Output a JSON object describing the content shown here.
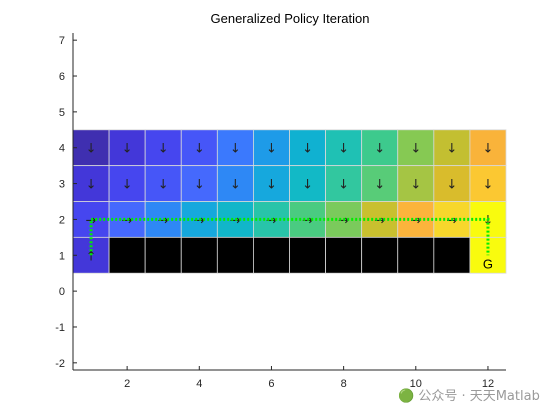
{
  "chart_data": {
    "type": "heatmap",
    "title": "Generalized Policy Iteration",
    "xlabel": "",
    "ylabel": "",
    "xlim": [
      0.5,
      12.5
    ],
    "ylim": [
      -2.2,
      7.2
    ],
    "xticks": [
      2,
      4,
      6,
      8,
      10,
      12
    ],
    "yticks": [
      -2,
      -1,
      0,
      1,
      2,
      3,
      4,
      5,
      6,
      7
    ],
    "grid": false,
    "goal": {
      "label": "G",
      "x": 12,
      "y": 1
    },
    "cliff": {
      "row": 1,
      "x_from": 2,
      "x_to": 11,
      "color": "#000000"
    },
    "rows": [
      {
        "y": 4,
        "colors": [
          "#3f2fb0",
          "#4337d9",
          "#4646ef",
          "#4656f8",
          "#3b79fd",
          "#1e9be8",
          "#10b1d1",
          "#1fc1b4",
          "#3dca8d",
          "#86c953",
          "#c3bf31",
          "#f9b33a"
        ],
        "arrows": [
          "↓",
          "↓",
          "↓",
          "↓",
          "↓",
          "↓",
          "↓",
          "↓",
          "↓",
          "↓",
          "↓",
          "↓"
        ]
      },
      {
        "y": 3,
        "colors": [
          "#4337d9",
          "#4646ef",
          "#4656f8",
          "#4569fd",
          "#2e88f5",
          "#16a8dd",
          "#12b9c6",
          "#32c79f",
          "#58cc78",
          "#a5c544",
          "#d9bc2c",
          "#fbc832"
        ],
        "arrows": [
          "↓",
          "↓",
          "↓",
          "↓",
          "↓",
          "↓",
          "↓",
          "↓",
          "↓",
          "↓",
          "↓",
          "↓"
        ]
      },
      {
        "y": 2,
        "colors": [
          "#4646ef",
          "#4569fd",
          "#2e88f5",
          "#16a8dd",
          "#11b6c9",
          "#28c4a9",
          "#4acb81",
          "#7bca5c",
          "#c9c02f",
          "#fbb43c",
          "#f7d72c",
          "#f9fb0e"
        ],
        "arrows": [
          "→",
          "→",
          "→",
          "→",
          "→",
          "→",
          "→",
          "→",
          "→",
          "→",
          "→",
          "↓"
        ]
      },
      {
        "y": 1,
        "colors": [
          "#4337d9",
          "#000000",
          "#000000",
          "#000000",
          "#000000",
          "#000000",
          "#000000",
          "#000000",
          "#000000",
          "#000000",
          "#000000",
          "#f9fb0e"
        ],
        "arrows": [
          "↑",
          "",
          "",
          "",
          "",
          "",
          "",
          "",
          "",
          "",
          "",
          ""
        ]
      }
    ],
    "path": {
      "color": "#00ee00",
      "style": "dotted",
      "x": [
        1,
        1,
        12,
        12
      ],
      "y": [
        1,
        2,
        2,
        1
      ]
    }
  },
  "watermark": "🟢 公众号 · 天天Matlab"
}
